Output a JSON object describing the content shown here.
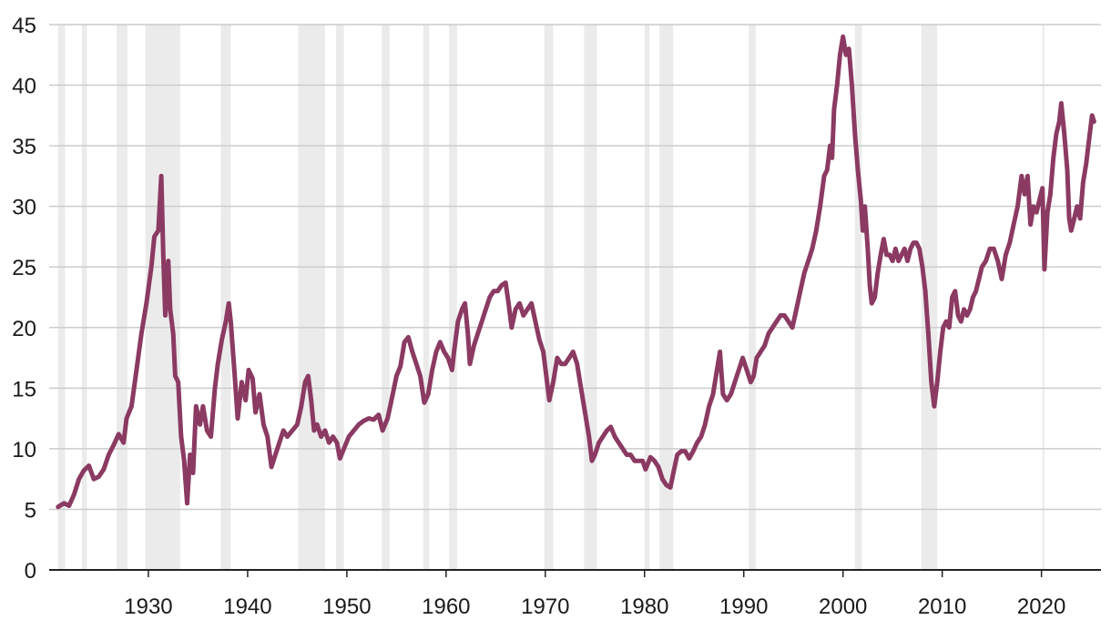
{
  "chart_data": {
    "type": "line",
    "title": "",
    "xlabel": "",
    "ylabel": "",
    "xlim": [
      1920,
      2026
    ],
    "ylim": [
      0,
      45
    ],
    "grid": "horizontal",
    "legend": "none",
    "x_ticks": [
      1930,
      1940,
      1950,
      1960,
      1970,
      1980,
      1990,
      2000,
      2010,
      2020
    ],
    "y_ticks": [
      0,
      5,
      10,
      15,
      20,
      25,
      30,
      35,
      40,
      45
    ],
    "colors": {
      "line": "#8b3a62",
      "recession": "#ebebeb",
      "grid": "#cccccc",
      "axis": "#222222"
    },
    "recession_periods": [
      [
        1920.9,
        1921.6
      ],
      [
        1923.3,
        1923.8
      ],
      [
        1926.8,
        1927.9
      ],
      [
        1929.7,
        1933.2
      ],
      [
        1937.3,
        1938.3
      ],
      [
        1945.1,
        1947.8
      ],
      [
        1948.9,
        1949.7
      ],
      [
        1953.5,
        1954.3
      ],
      [
        1957.7,
        1958.3
      ],
      [
        1960.3,
        1961.1
      ],
      [
        1969.9,
        1970.8
      ],
      [
        1973.9,
        1975.2
      ],
      [
        1980.0,
        1980.5
      ],
      [
        1981.5,
        1982.9
      ],
      [
        1990.5,
        1991.2
      ],
      [
        2001.2,
        2001.9
      ],
      [
        2007.9,
        2009.5
      ],
      [
        2020.1,
        2020.3
      ]
    ],
    "series": [
      {
        "values": [
          [
            1920.9,
            5.2
          ],
          [
            1921.5,
            5.5
          ],
          [
            1922.0,
            5.3
          ],
          [
            1922.5,
            6.2
          ],
          [
            1923.0,
            7.5
          ],
          [
            1923.5,
            8.2
          ],
          [
            1924.0,
            8.6
          ],
          [
            1924.5,
            7.5
          ],
          [
            1925.0,
            7.7
          ],
          [
            1925.5,
            8.3
          ],
          [
            1926.0,
            9.5
          ],
          [
            1926.5,
            10.3
          ],
          [
            1927.0,
            11.2
          ],
          [
            1927.5,
            10.5
          ],
          [
            1927.8,
            12.5
          ],
          [
            1928.3,
            13.5
          ],
          [
            1928.8,
            16.5
          ],
          [
            1929.3,
            19.5
          ],
          [
            1929.8,
            22.0
          ],
          [
            1930.3,
            25.0
          ],
          [
            1930.6,
            27.5
          ],
          [
            1931.0,
            28.0
          ],
          [
            1931.3,
            32.5
          ],
          [
            1931.5,
            26.0
          ],
          [
            1931.7,
            21.0
          ],
          [
            1932.0,
            25.5
          ],
          [
            1932.2,
            21.5
          ],
          [
            1932.5,
            19.5
          ],
          [
            1932.7,
            16.0
          ],
          [
            1933.0,
            15.5
          ],
          [
            1933.3,
            11.0
          ],
          [
            1933.6,
            9.0
          ],
          [
            1933.9,
            5.5
          ],
          [
            1934.2,
            9.5
          ],
          [
            1934.5,
            8.0
          ],
          [
            1934.8,
            13.5
          ],
          [
            1935.2,
            12.0
          ],
          [
            1935.5,
            13.5
          ],
          [
            1935.9,
            11.5
          ],
          [
            1936.3,
            11.0
          ],
          [
            1936.7,
            15.0
          ],
          [
            1937.0,
            17.0
          ],
          [
            1937.4,
            19.0
          ],
          [
            1937.8,
            20.5
          ],
          [
            1938.1,
            22.0
          ],
          [
            1938.3,
            20.5
          ],
          [
            1938.7,
            16.0
          ],
          [
            1939.0,
            12.5
          ],
          [
            1939.4,
            15.5
          ],
          [
            1939.8,
            14.0
          ],
          [
            1940.1,
            16.5
          ],
          [
            1940.5,
            15.8
          ],
          [
            1940.8,
            13.0
          ],
          [
            1941.2,
            14.5
          ],
          [
            1941.6,
            12.0
          ],
          [
            1942.0,
            11.0
          ],
          [
            1942.4,
            8.5
          ],
          [
            1942.8,
            9.5
          ],
          [
            1943.2,
            10.5
          ],
          [
            1943.6,
            11.5
          ],
          [
            1944.0,
            11.0
          ],
          [
            1944.5,
            11.5
          ],
          [
            1945.0,
            12.0
          ],
          [
            1945.4,
            13.5
          ],
          [
            1945.8,
            15.5
          ],
          [
            1946.1,
            16.0
          ],
          [
            1946.4,
            14.0
          ],
          [
            1946.7,
            11.5
          ],
          [
            1947.0,
            12.0
          ],
          [
            1947.4,
            11.0
          ],
          [
            1947.8,
            11.5
          ],
          [
            1948.2,
            10.5
          ],
          [
            1948.6,
            11.0
          ],
          [
            1949.0,
            10.5
          ],
          [
            1949.3,
            9.2
          ],
          [
            1949.7,
            10.0
          ],
          [
            1950.2,
            11.0
          ],
          [
            1950.7,
            11.5
          ],
          [
            1951.2,
            12.0
          ],
          [
            1951.7,
            12.3
          ],
          [
            1952.2,
            12.5
          ],
          [
            1952.7,
            12.4
          ],
          [
            1953.2,
            12.8
          ],
          [
            1953.6,
            11.5
          ],
          [
            1954.1,
            12.5
          ],
          [
            1954.5,
            14.0
          ],
          [
            1955.0,
            16.0
          ],
          [
            1955.4,
            16.8
          ],
          [
            1955.8,
            18.8
          ],
          [
            1956.2,
            19.2
          ],
          [
            1956.6,
            18.0
          ],
          [
            1957.0,
            17.0
          ],
          [
            1957.4,
            16.0
          ],
          [
            1957.8,
            13.8
          ],
          [
            1958.2,
            14.5
          ],
          [
            1958.6,
            16.5
          ],
          [
            1959.0,
            18.0
          ],
          [
            1959.4,
            18.8
          ],
          [
            1959.8,
            18.0
          ],
          [
            1960.2,
            17.5
          ],
          [
            1960.6,
            16.5
          ],
          [
            1960.8,
            18.0
          ],
          [
            1961.2,
            20.5
          ],
          [
            1961.6,
            21.5
          ],
          [
            1961.9,
            22.0
          ],
          [
            1962.2,
            19.5
          ],
          [
            1962.4,
            17.0
          ],
          [
            1962.8,
            18.5
          ],
          [
            1963.2,
            19.5
          ],
          [
            1963.6,
            20.5
          ],
          [
            1964.0,
            21.5
          ],
          [
            1964.4,
            22.5
          ],
          [
            1964.8,
            23.0
          ],
          [
            1965.2,
            23.0
          ],
          [
            1965.6,
            23.5
          ],
          [
            1966.0,
            23.7
          ],
          [
            1966.3,
            22.0
          ],
          [
            1966.6,
            20.0
          ],
          [
            1967.0,
            21.5
          ],
          [
            1967.4,
            22.0
          ],
          [
            1967.8,
            21.0
          ],
          [
            1968.2,
            21.5
          ],
          [
            1968.6,
            22.0
          ],
          [
            1969.0,
            20.5
          ],
          [
            1969.4,
            19.0
          ],
          [
            1969.8,
            18.0
          ],
          [
            1970.1,
            16.0
          ],
          [
            1970.4,
            14.0
          ],
          [
            1970.8,
            15.5
          ],
          [
            1971.2,
            17.5
          ],
          [
            1971.6,
            17.0
          ],
          [
            1972.0,
            17.0
          ],
          [
            1972.4,
            17.5
          ],
          [
            1972.8,
            18.0
          ],
          [
            1973.2,
            17.0
          ],
          [
            1973.6,
            15.0
          ],
          [
            1974.0,
            13.0
          ],
          [
            1974.4,
            11.0
          ],
          [
            1974.7,
            9.0
          ],
          [
            1975.0,
            9.5
          ],
          [
            1975.4,
            10.5
          ],
          [
            1975.8,
            11.0
          ],
          [
            1976.2,
            11.5
          ],
          [
            1976.6,
            11.8
          ],
          [
            1977.0,
            11.0
          ],
          [
            1977.4,
            10.5
          ],
          [
            1977.8,
            10.0
          ],
          [
            1978.2,
            9.5
          ],
          [
            1978.6,
            9.5
          ],
          [
            1979.0,
            9.0
          ],
          [
            1979.4,
            9.0
          ],
          [
            1979.8,
            9.0
          ],
          [
            1980.1,
            8.3
          ],
          [
            1980.6,
            9.3
          ],
          [
            1981.0,
            9.0
          ],
          [
            1981.4,
            8.5
          ],
          [
            1981.8,
            7.5
          ],
          [
            1982.2,
            7.0
          ],
          [
            1982.6,
            6.8
          ],
          [
            1982.9,
            8.0
          ],
          [
            1983.3,
            9.5
          ],
          [
            1983.7,
            9.8
          ],
          [
            1984.1,
            9.8
          ],
          [
            1984.5,
            9.2
          ],
          [
            1984.9,
            9.8
          ],
          [
            1985.3,
            10.5
          ],
          [
            1985.7,
            11.0
          ],
          [
            1986.1,
            12.0
          ],
          [
            1986.5,
            13.5
          ],
          [
            1986.9,
            14.5
          ],
          [
            1987.3,
            16.5
          ],
          [
            1987.6,
            18.0
          ],
          [
            1987.9,
            14.5
          ],
          [
            1988.3,
            14.0
          ],
          [
            1988.7,
            14.5
          ],
          [
            1989.1,
            15.5
          ],
          [
            1989.5,
            16.5
          ],
          [
            1989.9,
            17.5
          ],
          [
            1990.3,
            16.5
          ],
          [
            1990.7,
            15.5
          ],
          [
            1991.0,
            16.0
          ],
          [
            1991.3,
            17.5
          ],
          [
            1991.7,
            18.0
          ],
          [
            1992.1,
            18.5
          ],
          [
            1992.5,
            19.5
          ],
          [
            1992.9,
            20.0
          ],
          [
            1993.3,
            20.5
          ],
          [
            1993.7,
            21.0
          ],
          [
            1994.1,
            21.0
          ],
          [
            1994.5,
            20.5
          ],
          [
            1994.9,
            20.0
          ],
          [
            1995.3,
            21.5
          ],
          [
            1995.7,
            23.0
          ],
          [
            1996.1,
            24.5
          ],
          [
            1996.5,
            25.5
          ],
          [
            1996.9,
            26.5
          ],
          [
            1997.3,
            28.0
          ],
          [
            1997.7,
            30.0
          ],
          [
            1998.1,
            32.5
          ],
          [
            1998.4,
            33.0
          ],
          [
            1998.7,
            35.0
          ],
          [
            1998.9,
            34.0
          ],
          [
            1999.1,
            38.0
          ],
          [
            1999.4,
            40.0
          ],
          [
            1999.7,
            42.5
          ],
          [
            2000.0,
            44.0
          ],
          [
            2000.3,
            42.5
          ],
          [
            2000.6,
            43.0
          ],
          [
            2000.9,
            40.0
          ],
          [
            2001.2,
            36.0
          ],
          [
            2001.5,
            33.0
          ],
          [
            2001.8,
            30.5
          ],
          [
            2002.0,
            28.0
          ],
          [
            2002.2,
            30.0
          ],
          [
            2002.5,
            26.5
          ],
          [
            2002.7,
            23.5
          ],
          [
            2002.9,
            22.0
          ],
          [
            2003.2,
            22.5
          ],
          [
            2003.5,
            24.5
          ],
          [
            2003.8,
            26.0
          ],
          [
            2004.1,
            27.3
          ],
          [
            2004.4,
            26.0
          ],
          [
            2004.7,
            26.0
          ],
          [
            2005.0,
            25.5
          ],
          [
            2005.3,
            26.5
          ],
          [
            2005.6,
            25.5
          ],
          [
            2005.9,
            26.0
          ],
          [
            2006.2,
            26.5
          ],
          [
            2006.5,
            25.5
          ],
          [
            2006.8,
            26.5
          ],
          [
            2007.1,
            27.0
          ],
          [
            2007.4,
            27.0
          ],
          [
            2007.7,
            26.5
          ],
          [
            2008.0,
            25.0
          ],
          [
            2008.3,
            23.0
          ],
          [
            2008.6,
            19.5
          ],
          [
            2008.9,
            15.5
          ],
          [
            2009.2,
            13.5
          ],
          [
            2009.5,
            15.5
          ],
          [
            2009.8,
            18.0
          ],
          [
            2010.1,
            20.0
          ],
          [
            2010.4,
            20.5
          ],
          [
            2010.7,
            20.0
          ],
          [
            2011.0,
            22.5
          ],
          [
            2011.3,
            23.0
          ],
          [
            2011.6,
            21.0
          ],
          [
            2011.9,
            20.5
          ],
          [
            2012.2,
            21.5
          ],
          [
            2012.5,
            21.0
          ],
          [
            2012.8,
            21.5
          ],
          [
            2013.1,
            22.5
          ],
          [
            2013.4,
            23.0
          ],
          [
            2013.7,
            24.0
          ],
          [
            2014.0,
            25.0
          ],
          [
            2014.4,
            25.5
          ],
          [
            2014.8,
            26.5
          ],
          [
            2015.2,
            26.5
          ],
          [
            2015.6,
            25.5
          ],
          [
            2016.0,
            24.0
          ],
          [
            2016.4,
            26.0
          ],
          [
            2016.8,
            27.0
          ],
          [
            2017.2,
            28.5
          ],
          [
            2017.6,
            30.0
          ],
          [
            2018.0,
            32.5
          ],
          [
            2018.3,
            31.0
          ],
          [
            2018.6,
            32.5
          ],
          [
            2018.9,
            28.5
          ],
          [
            2019.2,
            30.0
          ],
          [
            2019.5,
            29.5
          ],
          [
            2019.8,
            30.5
          ],
          [
            2020.1,
            31.5
          ],
          [
            2020.3,
            24.8
          ],
          [
            2020.6,
            29.5
          ],
          [
            2020.9,
            31.0
          ],
          [
            2021.2,
            34.0
          ],
          [
            2021.5,
            36.0
          ],
          [
            2021.8,
            37.0
          ],
          [
            2022.0,
            38.5
          ],
          [
            2022.3,
            36.0
          ],
          [
            2022.6,
            33.0
          ],
          [
            2022.8,
            29.0
          ],
          [
            2023.0,
            28.0
          ],
          [
            2023.3,
            29.0
          ],
          [
            2023.6,
            30.0
          ],
          [
            2023.9,
            29.0
          ],
          [
            2024.2,
            32.0
          ],
          [
            2024.5,
            33.5
          ],
          [
            2024.8,
            35.5
          ],
          [
            2025.1,
            37.5
          ],
          [
            2025.3,
            37.0
          ]
        ]
      }
    ]
  }
}
